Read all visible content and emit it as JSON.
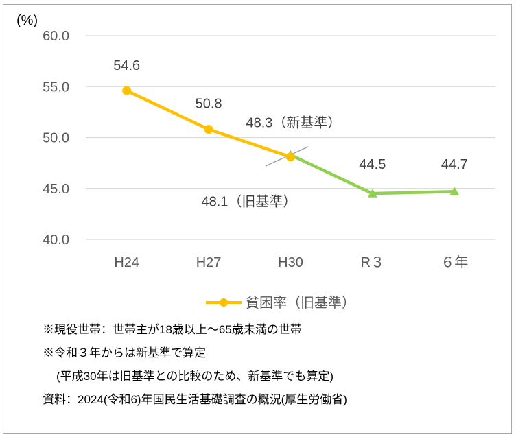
{
  "chart_data": {
    "type": "line",
    "unit_label": "(%)",
    "categories": [
      "H24",
      "H27",
      "H30",
      "R３",
      "６年"
    ],
    "ylim": [
      40,
      60
    ],
    "yticks": [
      "40.0",
      "45.0",
      "50.0",
      "55.0",
      "60.0"
    ],
    "grid": true,
    "legend_position": "bottom",
    "series": [
      {
        "name": "貧困率（旧基準）",
        "color": "#ffc000",
        "values": [
          54.6,
          50.8,
          48.1,
          null,
          null
        ],
        "labels": [
          "54.6",
          "50.8",
          "48.1（旧基準）",
          "",
          ""
        ]
      },
      {
        "name": "",
        "color": "#92d050",
        "values": [
          null,
          null,
          48.3,
          44.5,
          44.7
        ],
        "labels": [
          "",
          "",
          "48.3（新基準）",
          "44.5",
          "44.7"
        ]
      }
    ]
  },
  "notes": [
    "※現役世帯：世帯主が18歳以上～65歳未満の世帯",
    "※令和３年からは新基準で算定",
    "(平成30年は旧基準との比較のため、新基準でも算定)",
    "資料：2024(令和6)年国民生活基礎調査の概況(厚生労働省)"
  ]
}
